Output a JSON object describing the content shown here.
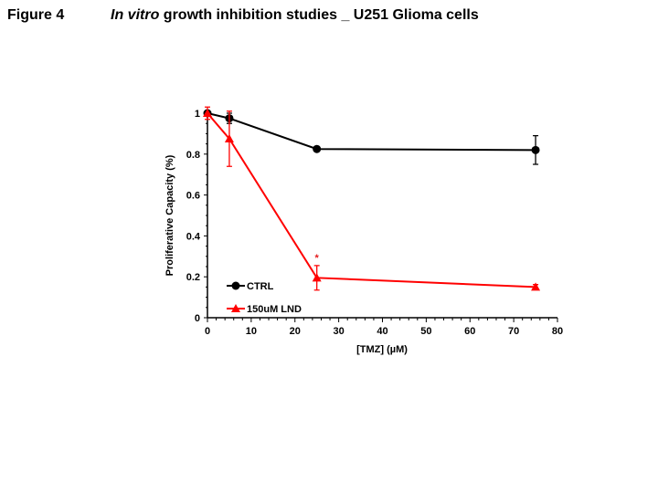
{
  "header": {
    "figure_label": "Figure 4",
    "title_italic": "In vitro",
    "title_rest": " growth inhibition studies _ U251 Glioma cells"
  },
  "chart_data": {
    "type": "line",
    "title": "In vitro growth inhibition studies _ U251 Glioma cells",
    "xlabel": "[TMZ] (µM)",
    "ylabel": "Proliferative Capacity (%)",
    "xlim": [
      0,
      80
    ],
    "ylim": [
      0,
      1
    ],
    "xticks": [
      0,
      10,
      20,
      30,
      40,
      50,
      60,
      70,
      80
    ],
    "yticks": [
      0,
      0.2,
      0.4,
      0.6,
      0.8,
      1
    ],
    "ytick_labels": [
      "0",
      "0.2",
      "0.4",
      "0.6",
      "0.8",
      "1"
    ],
    "legend_position": "bottom-left",
    "annotations": [
      {
        "text": "*",
        "x": 25,
        "y": 0.3,
        "color": "#e41a1c"
      }
    ],
    "series": [
      {
        "name": "CTRL",
        "color": "#000000",
        "marker": "circle",
        "x": [
          0,
          5,
          25,
          75
        ],
        "y": [
          1.0,
          0.975,
          0.825,
          0.82
        ],
        "err": [
          0.01,
          0.025,
          0.01,
          0.07
        ]
      },
      {
        "name": "150uM LND",
        "color": "#ff0000",
        "marker": "triangle",
        "x": [
          0,
          5,
          25,
          75
        ],
        "y": [
          1.0,
          0.875,
          0.195,
          0.15
        ],
        "err": [
          0.03,
          0.135,
          0.06,
          0.012
        ]
      }
    ]
  }
}
